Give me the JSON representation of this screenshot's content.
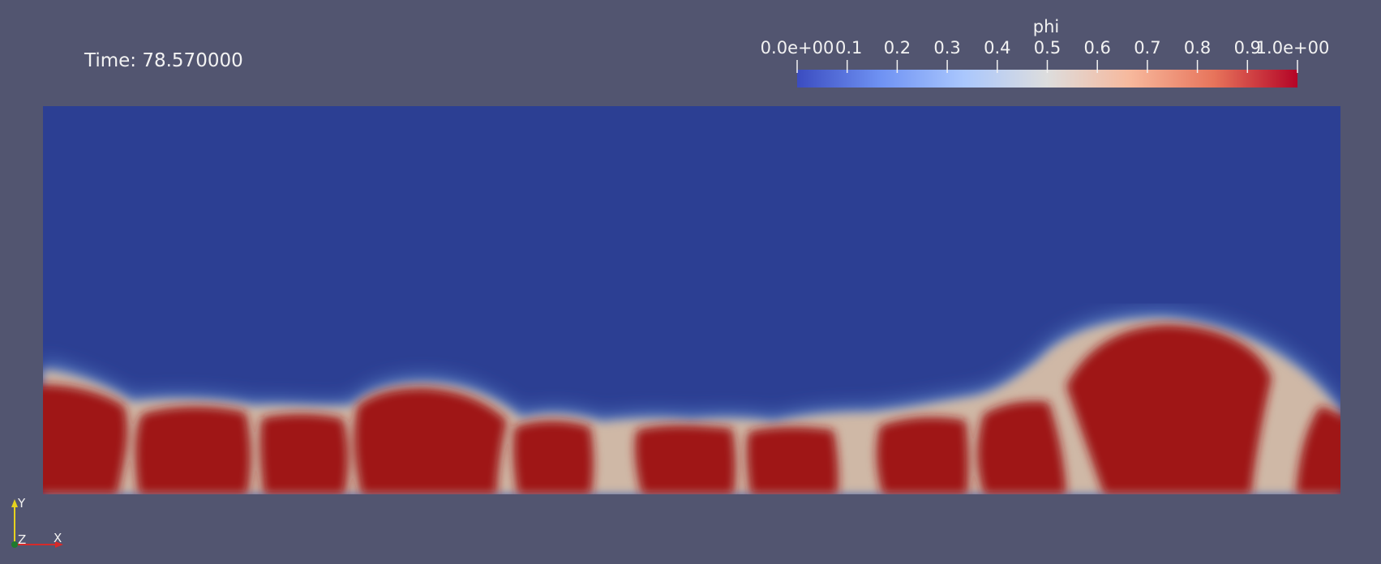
{
  "annotation": {
    "time_text": "Time: 78.570000"
  },
  "colorbar": {
    "title": "phi",
    "range": [
      0,
      1
    ],
    "ticks": [
      {
        "value": 0.0,
        "label": "0.0e+00"
      },
      {
        "value": 0.1,
        "label": "0.1"
      },
      {
        "value": 0.2,
        "label": "0.2"
      },
      {
        "value": 0.3,
        "label": "0.3"
      },
      {
        "value": 0.4,
        "label": "0.4"
      },
      {
        "value": 0.5,
        "label": "0.5"
      },
      {
        "value": 0.6,
        "label": "0.6"
      },
      {
        "value": 0.7,
        "label": "0.7"
      },
      {
        "value": 0.8,
        "label": "0.8"
      },
      {
        "value": 0.9,
        "label": "0.9"
      },
      {
        "value": 1.0,
        "label": "1.0e+00"
      }
    ],
    "colormap": [
      "#3b4cc0",
      "#6f92f3",
      "#aac7fd",
      "#dddddd",
      "#f7b89c",
      "#e7745b",
      "#b40426"
    ]
  },
  "field": {
    "background_color": "#2c3f93",
    "grain_color": "#9f1517",
    "boundary_color": "#cfb8a6"
  },
  "orientation_axes": {
    "y_label": "Y",
    "z_label": "Z",
    "x_label": "X",
    "y_color": "#e6d21e",
    "x_color": "#d62a2a",
    "z_color": "#1f7a2e"
  }
}
